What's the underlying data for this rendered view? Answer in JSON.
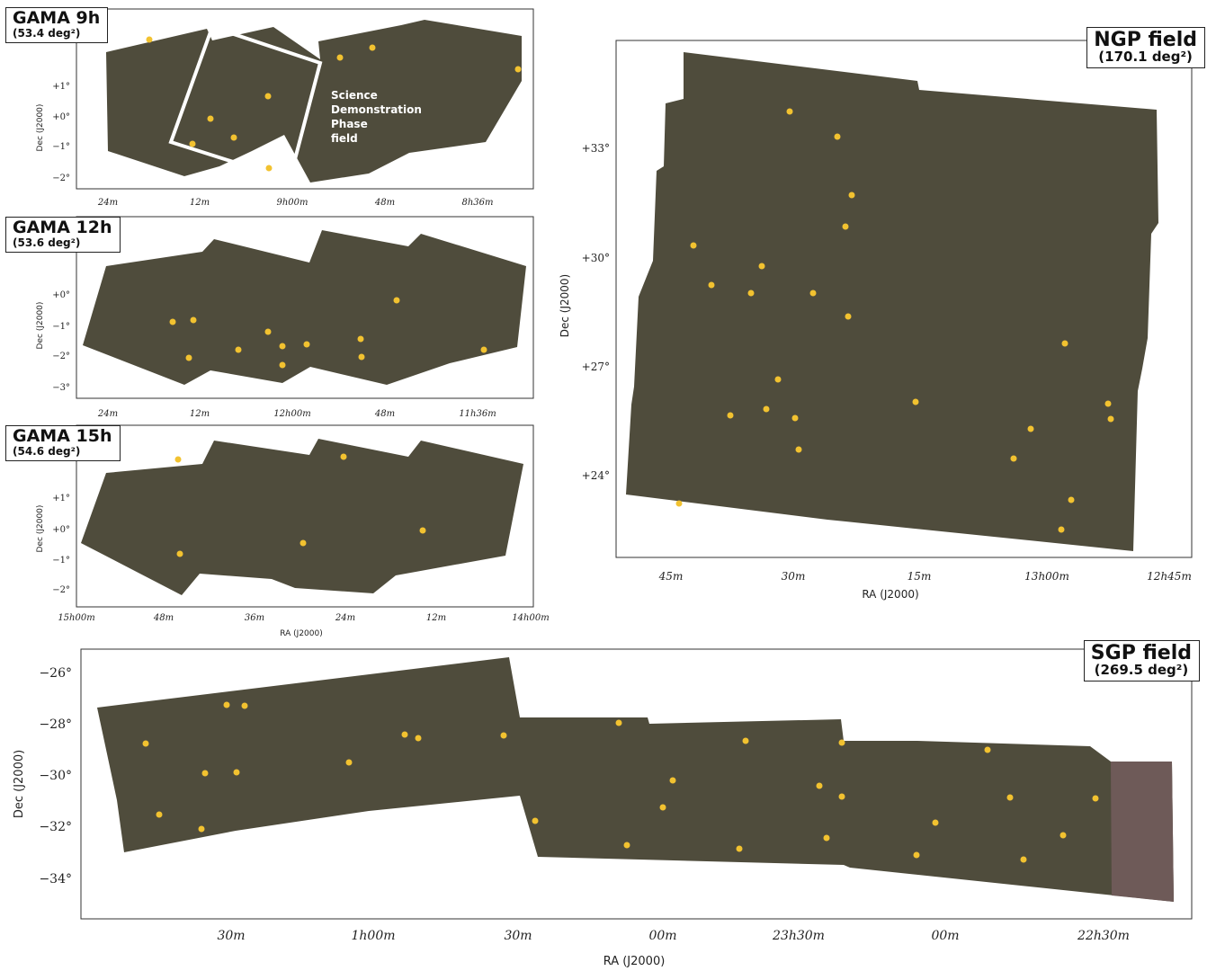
{
  "panels": {
    "gama9": {
      "title": "GAMA 9h",
      "area": "(53.4 deg²)",
      "ylabel": "Dec (J2000)",
      "yticks": [
        "+1°",
        "+0°",
        "−1°",
        "−2°"
      ],
      "xticks": [
        "24m",
        "12m",
        "9h00m",
        "48m",
        "8h36m"
      ],
      "annotation": [
        "Science",
        "Demonstration",
        "Phase",
        "field"
      ]
    },
    "gama12": {
      "title": "GAMA 12h",
      "area": "(53.6 deg²)",
      "ylabel": "Dec (J2000)",
      "yticks": [
        "+0°",
        "−1°",
        "−2°",
        "−3°"
      ],
      "xticks": [
        "24m",
        "12m",
        "12h00m",
        "48m",
        "11h36m"
      ]
    },
    "gama15": {
      "title": "GAMA 15h",
      "area": "(54.6 deg²)",
      "ylabel": "Dec (J2000)",
      "xlabel": "RA (J2000)",
      "yticks": [
        "+1°",
        "+0°",
        "−1°",
        "−2°"
      ],
      "xticks": [
        "15h00m",
        "48m",
        "36m",
        "24m",
        "12m",
        "14h00m"
      ]
    },
    "ngp": {
      "title": "NGP field",
      "area": "(170.1 deg²)",
      "ylabel": "Dec (J2000)",
      "xlabel": "RA (J2000)",
      "yticks": [
        "+33°",
        "+30°",
        "+27°",
        "+24°"
      ],
      "xticks": [
        "45m",
        "30m",
        "15m",
        "13h00m",
        "12h45m"
      ]
    },
    "sgp": {
      "title": "SGP field",
      "area": "(269.5 deg²)",
      "ylabel": "Dec (J2000)",
      "xlabel": "RA (J2000)",
      "yticks": [
        "−26°",
        "−28°",
        "−30°",
        "−32°",
        "−34°"
      ],
      "xticks": [
        "30m",
        "1h00m",
        "30m",
        "00m",
        "23h30m",
        "00m",
        "22h30m"
      ]
    }
  },
  "colors": {
    "field": "#4f4c3c",
    "field_sgp_edge": "#6e5a58",
    "marker": "#f2c230",
    "label_border": "#222222"
  }
}
